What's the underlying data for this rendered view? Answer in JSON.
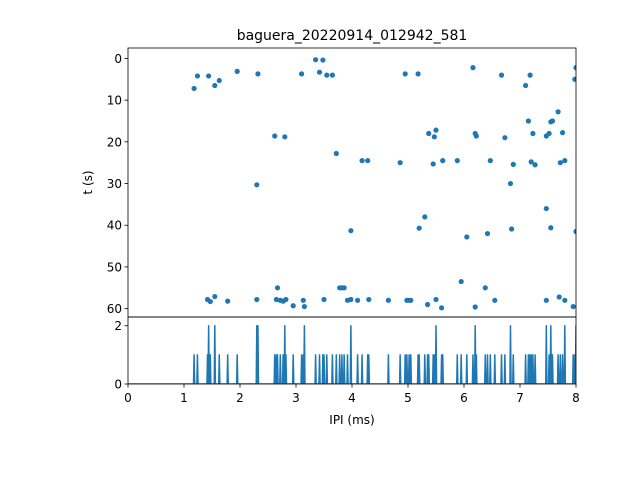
{
  "chart_data": [
    {
      "type": "scatter",
      "title": "baguera_20220914_012942_581",
      "xlabel": "",
      "ylabel": "t (s)",
      "xlim": [
        0,
        8
      ],
      "ylim": [
        62,
        -2.5
      ],
      "y_inverted": true,
      "yticks": [
        0,
        10,
        20,
        30,
        40,
        50,
        60
      ],
      "grid": false,
      "color": "#1f77b4",
      "points": [
        [
          1.18,
          7.2
        ],
        [
          1.24,
          4.2
        ],
        [
          1.44,
          4.2
        ],
        [
          1.55,
          6.5
        ],
        [
          1.63,
          5.3
        ],
        [
          1.95,
          3.1
        ],
        [
          2.32,
          3.7
        ],
        [
          3.1,
          3.7
        ],
        [
          3.35,
          0.3
        ],
        [
          3.42,
          3.3
        ],
        [
          3.48,
          0.4
        ],
        [
          3.55,
          4.0
        ],
        [
          3.65,
          4.0
        ],
        [
          4.95,
          3.7
        ],
        [
          5.18,
          3.7
        ],
        [
          6.16,
          2.2
        ],
        [
          6.67,
          4.0
        ],
        [
          7.1,
          6.5
        ],
        [
          7.18,
          4.0
        ],
        [
          7.98,
          5.0
        ],
        [
          8.0,
          2.2
        ],
        [
          2.62,
          18.6
        ],
        [
          2.8,
          18.8
        ],
        [
          3.72,
          22.8
        ],
        [
          4.18,
          24.5
        ],
        [
          4.28,
          24.5
        ],
        [
          4.86,
          25.0
        ],
        [
          5.37,
          18.0
        ],
        [
          5.45,
          25.3
        ],
        [
          5.47,
          18.8
        ],
        [
          5.5,
          17.2
        ],
        [
          5.62,
          24.5
        ],
        [
          5.88,
          24.5
        ],
        [
          6.2,
          18.0
        ],
        [
          6.22,
          18.6
        ],
        [
          6.47,
          24.5
        ],
        [
          6.73,
          19.0
        ],
        [
          6.83,
          30.0
        ],
        [
          6.88,
          25.4
        ],
        [
          7.15,
          15.0
        ],
        [
          7.2,
          24.8
        ],
        [
          7.23,
          18.0
        ],
        [
          7.27,
          25.5
        ],
        [
          7.47,
          18.6
        ],
        [
          7.52,
          18.0
        ],
        [
          7.55,
          15.2
        ],
        [
          7.58,
          15.0
        ],
        [
          7.68,
          12.8
        ],
        [
          7.72,
          25.0
        ],
        [
          7.76,
          17.8
        ],
        [
          7.8,
          24.5
        ],
        [
          2.3,
          30.3
        ],
        [
          3.98,
          41.3
        ],
        [
          5.2,
          40.7
        ],
        [
          5.3,
          38.0
        ],
        [
          6.05,
          42.8
        ],
        [
          6.42,
          42.0
        ],
        [
          6.85,
          40.9
        ],
        [
          7.47,
          36.0
        ],
        [
          7.55,
          40.6
        ],
        [
          8.0,
          41.5
        ],
        [
          1.42,
          57.8
        ],
        [
          1.47,
          58.3
        ],
        [
          1.55,
          57.1
        ],
        [
          1.78,
          58.2
        ],
        [
          2.3,
          57.8
        ],
        [
          2.65,
          57.8
        ],
        [
          2.67,
          55.0
        ],
        [
          2.72,
          58.0
        ],
        [
          2.77,
          58.2
        ],
        [
          2.82,
          57.8
        ],
        [
          2.95,
          59.3
        ],
        [
          3.13,
          58.0
        ],
        [
          3.15,
          59.5
        ],
        [
          3.5,
          57.8
        ],
        [
          3.78,
          55.0
        ],
        [
          3.82,
          55.0
        ],
        [
          3.86,
          55.0
        ],
        [
          3.92,
          58.0
        ],
        [
          3.98,
          57.8
        ],
        [
          4.1,
          58.0
        ],
        [
          4.3,
          57.8
        ],
        [
          4.65,
          58.0
        ],
        [
          4.98,
          58.0
        ],
        [
          5.02,
          58.0
        ],
        [
          5.05,
          58.0
        ],
        [
          5.35,
          59.0
        ],
        [
          5.5,
          57.8
        ],
        [
          5.6,
          59.8
        ],
        [
          5.95,
          53.5
        ],
        [
          6.2,
          59.6
        ],
        [
          6.38,
          55.0
        ],
        [
          6.55,
          58.0
        ],
        [
          7.47,
          58.0
        ],
        [
          7.7,
          57.2
        ],
        [
          7.8,
          58.0
        ],
        [
          7.95,
          59.5
        ]
      ]
    },
    {
      "type": "line",
      "title": "",
      "xlabel": "IPI (ms)",
      "ylabel": "",
      "xlim": [
        0,
        8
      ],
      "ylim": [
        0,
        2.3
      ],
      "xticks": [
        0,
        1,
        2,
        3,
        4,
        5,
        6,
        7,
        8
      ],
      "yticks": [
        0,
        2
      ],
      "grid": false,
      "color": "#1f77b4",
      "spikes": [
        [
          1.18,
          1
        ],
        [
          1.24,
          1
        ],
        [
          1.42,
          1
        ],
        [
          1.44,
          2
        ],
        [
          1.47,
          1
        ],
        [
          1.55,
          2
        ],
        [
          1.63,
          1
        ],
        [
          1.78,
          1
        ],
        [
          1.95,
          1
        ],
        [
          2.3,
          2
        ],
        [
          2.32,
          2
        ],
        [
          2.62,
          1
        ],
        [
          2.65,
          1
        ],
        [
          2.67,
          1
        ],
        [
          2.72,
          1
        ],
        [
          2.77,
          1
        ],
        [
          2.8,
          2
        ],
        [
          2.82,
          1
        ],
        [
          2.95,
          1
        ],
        [
          3.1,
          1
        ],
        [
          3.13,
          1
        ],
        [
          3.15,
          2
        ],
        [
          3.35,
          1
        ],
        [
          3.42,
          1
        ],
        [
          3.48,
          1
        ],
        [
          3.5,
          1
        ],
        [
          3.55,
          1
        ],
        [
          3.65,
          1
        ],
        [
          3.72,
          1
        ],
        [
          3.78,
          1
        ],
        [
          3.82,
          1
        ],
        [
          3.86,
          1
        ],
        [
          3.92,
          1
        ],
        [
          3.98,
          2
        ],
        [
          4.1,
          1
        ],
        [
          4.18,
          1
        ],
        [
          4.28,
          1
        ],
        [
          4.3,
          1
        ],
        [
          4.65,
          1
        ],
        [
          4.86,
          1
        ],
        [
          4.95,
          1
        ],
        [
          4.98,
          1
        ],
        [
          5.02,
          1
        ],
        [
          5.05,
          1
        ],
        [
          5.18,
          1
        ],
        [
          5.2,
          1
        ],
        [
          5.3,
          1
        ],
        [
          5.35,
          1
        ],
        [
          5.37,
          1
        ],
        [
          5.45,
          1
        ],
        [
          5.47,
          1
        ],
        [
          5.5,
          2
        ],
        [
          5.6,
          1
        ],
        [
          5.62,
          1
        ],
        [
          5.88,
          1
        ],
        [
          5.95,
          1
        ],
        [
          6.05,
          1
        ],
        [
          6.16,
          1
        ],
        [
          6.2,
          2
        ],
        [
          6.22,
          1
        ],
        [
          6.38,
          1
        ],
        [
          6.42,
          1
        ],
        [
          6.47,
          1
        ],
        [
          6.55,
          1
        ],
        [
          6.67,
          1
        ],
        [
          6.73,
          1
        ],
        [
          6.83,
          2
        ],
        [
          6.88,
          1
        ],
        [
          7.1,
          1
        ],
        [
          7.15,
          1
        ],
        [
          7.18,
          1
        ],
        [
          7.2,
          1
        ],
        [
          7.23,
          1
        ],
        [
          7.27,
          1
        ],
        [
          7.47,
          2
        ],
        [
          7.52,
          1
        ],
        [
          7.55,
          2
        ],
        [
          7.58,
          1
        ],
        [
          7.68,
          1
        ],
        [
          7.72,
          1
        ],
        [
          7.76,
          1
        ],
        [
          7.8,
          2
        ],
        [
          7.95,
          1
        ],
        [
          7.98,
          1
        ],
        [
          8.0,
          2
        ]
      ]
    }
  ]
}
